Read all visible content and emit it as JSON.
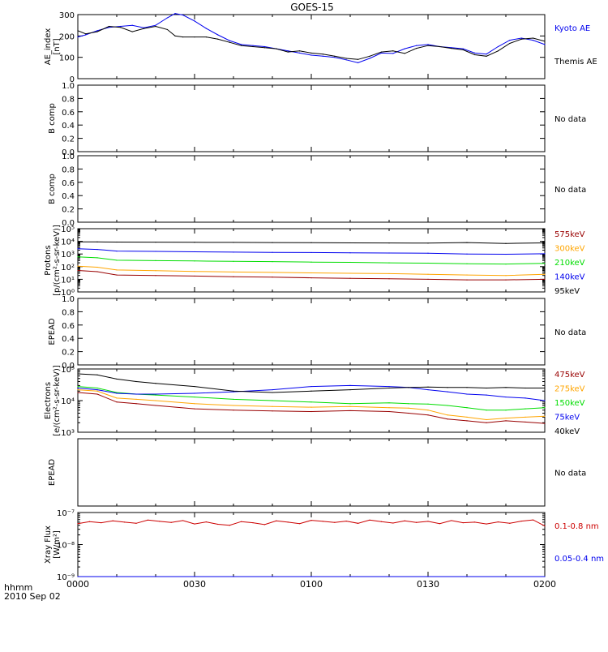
{
  "title": "GOES-15",
  "colors": {
    "black": "#000000",
    "blue": "#0000ee",
    "red": "#cc0000",
    "orange": "#ffa500",
    "green": "#00dd00",
    "darkred": "#990000"
  },
  "x_axis": {
    "ticks": [
      "0000",
      "0030",
      "0100",
      "0130",
      "0200"
    ],
    "corner_label": "hhmm",
    "date_label": "2010 Sep 02",
    "range_minutes": [
      0,
      120
    ]
  },
  "chart_data": [
    {
      "type": "line",
      "ylabel": [
        "AE_index",
        "[nT]"
      ],
      "ylim": [
        0,
        300
      ],
      "scale": "linear",
      "y_ticks": [
        "0",
        "100",
        "200",
        "300"
      ],
      "series": [
        {
          "name": "Kyoto AE",
          "color": "blue",
          "x": [
            0,
            2,
            5,
            8,
            11,
            14,
            17,
            20,
            23,
            25,
            27,
            30,
            33,
            36,
            39,
            42,
            45,
            48,
            51,
            54,
            57,
            60,
            63,
            66,
            69,
            72,
            75,
            78,
            81,
            84,
            87,
            90,
            93,
            96,
            99,
            102,
            105,
            108,
            111,
            114,
            117,
            120
          ],
          "y": [
            195,
            205,
            225,
            240,
            245,
            250,
            238,
            250,
            285,
            305,
            298,
            270,
            235,
            205,
            178,
            160,
            155,
            150,
            140,
            130,
            120,
            110,
            105,
            100,
            88,
            75,
            95,
            120,
            118,
            140,
            155,
            160,
            150,
            145,
            140,
            120,
            115,
            150,
            180,
            190,
            180,
            160
          ]
        },
        {
          "name": "Themis AE",
          "color": "black",
          "x": [
            0,
            2,
            5,
            8,
            11,
            14,
            17,
            20,
            23,
            25,
            27,
            30,
            33,
            36,
            39,
            42,
            45,
            48,
            51,
            54,
            57,
            60,
            63,
            66,
            69,
            72,
            75,
            78,
            81,
            84,
            87,
            90,
            93,
            96,
            99,
            102,
            105,
            108,
            111,
            114,
            117,
            120
          ],
          "y": [
            225,
            210,
            220,
            245,
            240,
            220,
            235,
            245,
            230,
            200,
            195,
            195,
            195,
            185,
            170,
            155,
            150,
            145,
            140,
            125,
            130,
            120,
            115,
            105,
            95,
            90,
            105,
            125,
            130,
            118,
            142,
            155,
            150,
            142,
            135,
            112,
            105,
            130,
            165,
            185,
            190,
            175
          ]
        }
      ]
    },
    {
      "type": "line",
      "ylabel": [
        "B comp"
      ],
      "ylim": [
        0,
        1
      ],
      "scale": "linear",
      "y_ticks": [
        "0.0",
        "0.2",
        "0.4",
        "0.6",
        "0.8",
        "1.0"
      ],
      "series": [],
      "status": "No data"
    },
    {
      "type": "line",
      "ylabel": [
        "B comp"
      ],
      "ylim": [
        0,
        1
      ],
      "scale": "linear",
      "y_ticks": [
        "0.0",
        "0.2",
        "0.4",
        "0.6",
        "0.8",
        "1.0"
      ],
      "series": [],
      "status": "No data"
    },
    {
      "type": "line",
      "ylabel": [
        "Protons",
        "[p/(cm²-s-sr-keV)]"
      ],
      "ylim": [
        1,
        100000
      ],
      "scale": "log",
      "y_ticks": [
        "10⁰",
        "10¹",
        "10²",
        "10³",
        "10⁴",
        "10⁵"
      ],
      "series": [
        {
          "name": "575keV",
          "color": "darkred",
          "x": [
            0,
            5,
            10,
            20,
            30,
            40,
            50,
            60,
            70,
            80,
            90,
            100,
            110,
            120
          ],
          "y": [
            50,
            40,
            22,
            20,
            18,
            16,
            15,
            13,
            12,
            11,
            10,
            9,
            9,
            10
          ]
        },
        {
          "name": "300keV",
          "color": "orange",
          "x": [
            0,
            5,
            10,
            20,
            30,
            40,
            50,
            60,
            70,
            80,
            90,
            100,
            110,
            120
          ],
          "y": [
            110,
            90,
            55,
            48,
            42,
            38,
            35,
            32,
            30,
            28,
            25,
            22,
            20,
            25
          ]
        },
        {
          "name": "210keV",
          "color": "green",
          "x": [
            0,
            5,
            10,
            20,
            30,
            40,
            50,
            60,
            70,
            80,
            90,
            100,
            110,
            120
          ],
          "y": [
            600,
            500,
            320,
            300,
            280,
            260,
            250,
            230,
            220,
            200,
            190,
            170,
            160,
            180
          ]
        },
        {
          "name": "140keV",
          "color": "blue",
          "x": [
            0,
            5,
            10,
            20,
            30,
            40,
            50,
            60,
            70,
            80,
            90,
            100,
            110,
            120
          ],
          "y": [
            2600,
            2300,
            1700,
            1600,
            1500,
            1400,
            1350,
            1300,
            1250,
            1200,
            1150,
            1000,
            950,
            1050
          ]
        },
        {
          "name": "95keV",
          "color": "black",
          "x": [
            0,
            5,
            10,
            20,
            30,
            40,
            50,
            60,
            70,
            80,
            90,
            100,
            110,
            120
          ],
          "y": [
            9000,
            9000,
            8800,
            8600,
            8400,
            8200,
            8000,
            7800,
            7600,
            7400,
            7200,
            8000,
            6800,
            7500
          ]
        }
      ]
    },
    {
      "type": "line",
      "ylabel": [
        "EPEAD"
      ],
      "ylim": [
        0,
        1
      ],
      "scale": "linear",
      "y_ticks": [
        "0.0",
        "0.2",
        "0.4",
        "0.6",
        "0.8",
        "1.0"
      ],
      "series": [],
      "status": "No data"
    },
    {
      "type": "line",
      "ylabel": [
        "Electrons",
        "[e/(cm²-s-sr-keV)]"
      ],
      "ylim": [
        1000,
        100000
      ],
      "scale": "log",
      "y_ticks": [
        "10³",
        "10⁴",
        "10⁵"
      ],
      "series": [
        {
          "name": "475keV",
          "color": "darkred",
          "x": [
            0,
            5,
            10,
            15,
            20,
            30,
            40,
            50,
            60,
            70,
            80,
            85,
            90,
            95,
            100,
            105,
            110,
            115,
            120
          ],
          "y": [
            18000,
            16000,
            9000,
            8000,
            7000,
            5500,
            5000,
            4700,
            4500,
            4800,
            4500,
            4000,
            3500,
            2600,
            2300,
            2000,
            2300,
            2100,
            1900
          ]
        },
        {
          "name": "275keV",
          "color": "orange",
          "x": [
            0,
            5,
            10,
            15,
            20,
            30,
            40,
            50,
            60,
            70,
            80,
            85,
            90,
            95,
            100,
            105,
            110,
            115,
            120
          ],
          "y": [
            22000,
            20000,
            12000,
            11000,
            10000,
            8000,
            7000,
            6500,
            6200,
            6500,
            6000,
            5800,
            5000,
            3500,
            3000,
            2500,
            2800,
            3000,
            3200
          ]
        },
        {
          "name": "150keV",
          "color": "green",
          "x": [
            0,
            5,
            10,
            15,
            20,
            30,
            40,
            50,
            60,
            70,
            80,
            85,
            90,
            95,
            100,
            105,
            110,
            115,
            120
          ],
          "y": [
            28000,
            25000,
            18000,
            16000,
            15000,
            13000,
            11000,
            10000,
            9000,
            8000,
            8500,
            8000,
            7800,
            7000,
            6000,
            5000,
            5000,
            5500,
            6000
          ]
        },
        {
          "name": "75keV",
          "color": "blue",
          "x": [
            0,
            5,
            10,
            15,
            20,
            30,
            40,
            50,
            60,
            70,
            80,
            85,
            90,
            95,
            100,
            105,
            110,
            115,
            120
          ],
          "y": [
            25000,
            22000,
            17000,
            16000,
            16000,
            17000,
            19000,
            22000,
            28000,
            30000,
            28000,
            26000,
            22000,
            19000,
            16000,
            15000,
            13000,
            12000,
            10000
          ]
        },
        {
          "name": "40keV",
          "color": "black",
          "x": [
            0,
            5,
            10,
            15,
            20,
            30,
            40,
            50,
            60,
            70,
            80,
            85,
            90,
            95,
            100,
            105,
            110,
            115,
            120
          ],
          "y": [
            70000,
            65000,
            48000,
            40000,
            35000,
            28000,
            20000,
            18000,
            20000,
            22000,
            25000,
            26000,
            27000,
            26000,
            26000,
            25000,
            26000,
            25000,
            25000
          ]
        }
      ]
    },
    {
      "type": "line",
      "ylabel": [
        "EPEAD"
      ],
      "ylim": [
        0,
        1
      ],
      "scale": "linear",
      "y_ticks": [],
      "series": [],
      "status": "No data"
    },
    {
      "type": "line",
      "ylabel": [
        "Xray Flux",
        "[W/m²]"
      ],
      "ylim": [
        1e-09,
        1e-07
      ],
      "scale": "log",
      "y_ticks": [
        "10⁻⁹",
        "10⁻⁸",
        "10⁻⁷"
      ],
      "series": [
        {
          "name": "0.1-0.8 nm",
          "color": "red",
          "x": [
            0,
            3,
            6,
            9,
            12,
            15,
            18,
            21,
            24,
            27,
            30,
            33,
            36,
            39,
            42,
            45,
            48,
            51,
            54,
            57,
            60,
            63,
            66,
            69,
            72,
            75,
            78,
            81,
            84,
            87,
            90,
            93,
            96,
            99,
            102,
            105,
            108,
            111,
            114,
            117,
            120
          ],
          "y": [
            4.5e-08,
            5.2e-08,
            4.8e-08,
            5.5e-08,
            5e-08,
            4.6e-08,
            5.8e-08,
            5.3e-08,
            4.9e-08,
            5.6e-08,
            4.4e-08,
            5.1e-08,
            4.3e-08,
            4e-08,
            5.2e-08,
            4.8e-08,
            4.2e-08,
            5.5e-08,
            5e-08,
            4.5e-08,
            5.7e-08,
            5.3e-08,
            4.9e-08,
            5.4e-08,
            4.6e-08,
            5.8e-08,
            5.2e-08,
            4.7e-08,
            5.5e-08,
            4.9e-08,
            5.3e-08,
            4.5e-08,
            5.6e-08,
            4.8e-08,
            5e-08,
            4.4e-08,
            5.1e-08,
            4.6e-08,
            5.4e-08,
            5.9e-08,
            3.8e-08
          ]
        },
        {
          "name": "0.05-0.4 nm",
          "color": "blue",
          "x": [
            0,
            10,
            20,
            30,
            40,
            50,
            60,
            70,
            80,
            90,
            100,
            110,
            120
          ],
          "y": [
            1e-09,
            1e-09,
            1e-09,
            1e-09,
            1e-09,
            1e-09,
            1e-09,
            1e-09,
            1e-09,
            1e-09,
            1e-09,
            1e-09,
            1e-09
          ]
        }
      ]
    }
  ]
}
